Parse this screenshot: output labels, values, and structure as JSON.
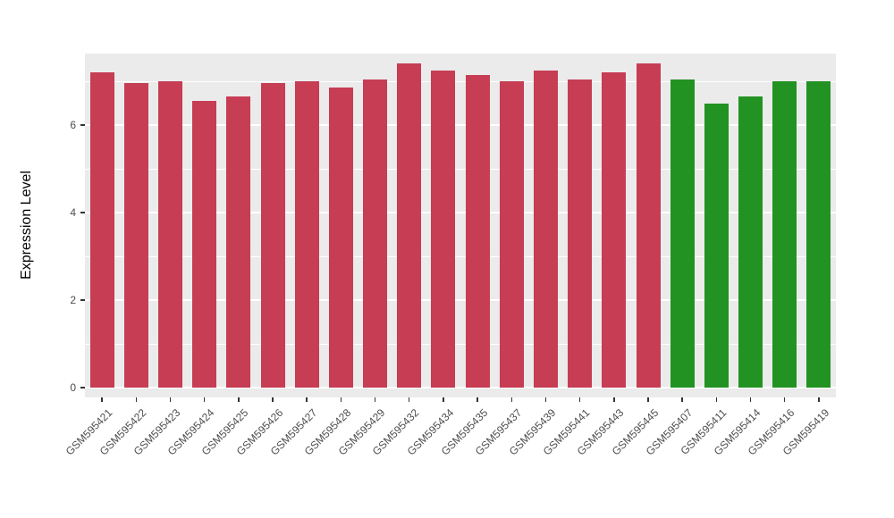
{
  "chart_data": {
    "type": "bar",
    "title": "",
    "xlabel": "",
    "ylabel": "Expression Level",
    "categories": [
      "GSM595421",
      "GSM595422",
      "GSM595423",
      "GSM595424",
      "GSM595425",
      "GSM595426",
      "GSM595427",
      "GSM595428",
      "GSM595429",
      "GSM595432",
      "GSM595434",
      "GSM595435",
      "GSM595437",
      "GSM595439",
      "GSM595441",
      "GSM595443",
      "GSM595445",
      "GSM595407",
      "GSM595411",
      "GSM595414",
      "GSM595416",
      "GSM595419"
    ],
    "values": [
      7.2,
      6.95,
      7.0,
      6.55,
      6.65,
      6.95,
      7.0,
      6.85,
      7.05,
      7.4,
      7.25,
      7.15,
      7.0,
      7.25,
      7.05,
      7.2,
      7.4,
      7.05,
      6.5,
      6.65,
      7.0,
      7.0
    ],
    "colors": [
      "#C63D54",
      "#C63D54",
      "#C63D54",
      "#C63D54",
      "#C63D54",
      "#C63D54",
      "#C63D54",
      "#C63D54",
      "#C63D54",
      "#C63D54",
      "#C63D54",
      "#C63D54",
      "#C63D54",
      "#C63D54",
      "#C63D54",
      "#C63D54",
      "#C63D54",
      "#229322",
      "#229322",
      "#229322",
      "#229322",
      "#229322"
    ],
    "ylim": [
      0,
      7.6
    ],
    "yticks": [
      0,
      2,
      4,
      6
    ],
    "yticks_minor": [
      1,
      3,
      5,
      7
    ],
    "panel_bg": "#EBEBEB",
    "grid_color": "#FFFFFF",
    "tick_label_color": "#4D4D4D",
    "grid": true,
    "legend": "none"
  }
}
